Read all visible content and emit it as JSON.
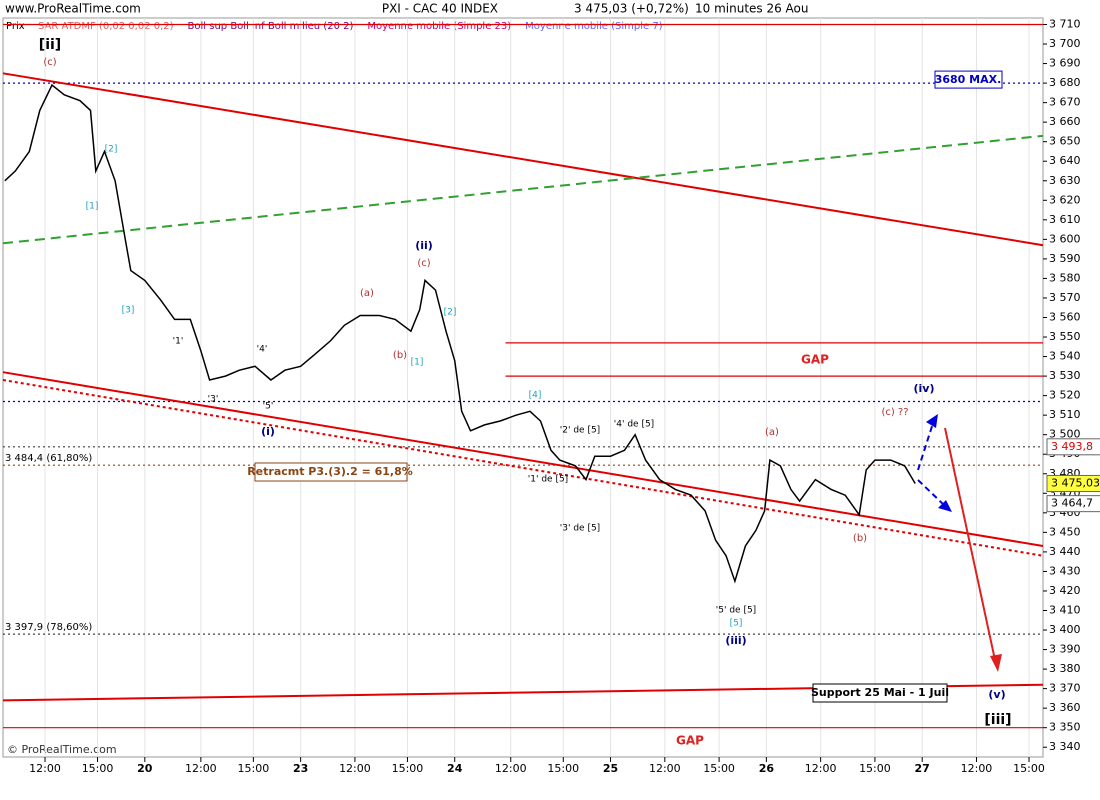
{
  "header": {
    "site": "www.ProRealTime.com",
    "title": "PXI - CAC 40 INDEX",
    "price": "3 475,03 (+0,72%)",
    "period": "10 minutes  26 Aou"
  },
  "legend": {
    "label": "Prix",
    "items": [
      {
        "text": "SAR ATDMF (0,02 0,02 0,2)",
        "color": "#e06060"
      },
      {
        "text": "Boll sup Boll inf Boll milieu (20 2)",
        "color": "#800080"
      },
      {
        "text": "Moyenne mobile (Simple 23)",
        "color": "#c00080"
      },
      {
        "text": "Moyenne mobile (Simple 7)",
        "color": "#6060ff"
      }
    ]
  },
  "footer": "© ProRealTime.com",
  "chart_data": {
    "type": "line",
    "series": [
      {
        "name": "PXI - CAC 40 INDEX",
        "color": "#000000",
        "x": [
          0.1,
          0.7,
          1.5,
          2.1,
          2.8,
          3.5,
          4.4,
          5.0,
          5.3,
          5.8,
          6.4,
          7.0,
          7.3,
          8.1,
          9.0,
          9.8,
          10.7,
          11.3,
          11.8,
          12.7,
          13.5,
          14.4,
          15.3,
          16.1,
          17.0,
          17.8,
          18.7,
          19.5,
          20.4,
          21.5,
          22.4,
          23.3,
          23.8,
          24.1,
          24.7,
          25.3,
          25.8,
          26.2,
          26.7,
          27.5,
          28.4,
          29.3,
          30.1,
          30.7,
          31.3,
          31.8,
          32.7,
          33.3,
          33.8,
          34.7,
          35.5,
          36.1,
          36.7,
          37.5,
          38.4,
          39.3,
          40.1,
          40.7,
          41.3,
          41.8,
          42.4,
          43.0,
          43.5,
          43.8,
          44.4,
          45.0,
          45.5,
          46.4,
          47.3,
          48.1,
          48.9,
          49.3,
          49.8,
          50.7,
          51.5,
          52.1
        ],
        "values": [
          3630,
          3635,
          3645,
          3666,
          3679,
          3674,
          3671,
          3666,
          3635,
          3645,
          3630,
          3599,
          3584,
          3579,
          3569,
          3559,
          3559,
          3543,
          3528,
          3530,
          3533,
          3535,
          3528,
          3533,
          3535,
          3541,
          3548,
          3556,
          3561,
          3561,
          3559,
          3553,
          3564,
          3579,
          3574,
          3553,
          3538,
          3512,
          3502,
          3505,
          3507,
          3510,
          3512,
          3507,
          3492,
          3487,
          3484,
          3477,
          3489,
          3489,
          3492,
          3500,
          3487,
          3477,
          3472,
          3469,
          3461,
          3446,
          3438,
          3425,
          3443,
          3451,
          3461,
          3487,
          3484,
          3472,
          3466,
          3477,
          3472,
          3469,
          3459,
          3482,
          3487,
          3487,
          3484,
          3475.03
        ]
      }
    ],
    "trendlines": [
      {
        "color": "#e00000",
        "dash": "",
        "x": [
          0,
          59.4
        ],
        "y": [
          3685,
          3597
        ]
      },
      {
        "color": "#e00000",
        "dash": "",
        "x": [
          0,
          59.4
        ],
        "y": [
          3532,
          3443
        ]
      },
      {
        "color": "#e00000",
        "dash": "3 3",
        "x": [
          0,
          59.4
        ],
        "y": [
          3528,
          3438
        ]
      },
      {
        "color": "#30a030",
        "dash": "10 6",
        "x": [
          0,
          59.4
        ],
        "y": [
          3598,
          3653
        ]
      },
      {
        "color": "#e00000",
        "dash": "",
        "x": [
          0,
          59.4
        ],
        "y": [
          3364,
          3372
        ]
      }
    ],
    "levels": [
      {
        "value": 3710,
        "color": "#e00000",
        "dash": ""
      },
      {
        "value": 3680,
        "color": "#0000c0",
        "dash": "2 3",
        "label": "3680 MAX."
      },
      {
        "value": 3547,
        "color": "#e00000",
        "dash": "",
        "x0": 28.7
      },
      {
        "value": 3530,
        "color": "#e00000",
        "dash": "",
        "x0": 28.7
      },
      {
        "value": 3517,
        "color": "#0000c0",
        "dash": "2 3"
      },
      {
        "value": 3493.8,
        "color": "#404040",
        "dash": "2 3"
      },
      {
        "value": 3484.4,
        "color": "#8b4513",
        "dash": "2 3",
        "label": "3 484,4 (61,80%)"
      },
      {
        "value": 3397.9,
        "color": "#404040",
        "dash": "2 3",
        "label": "3 397,9 (78,60%)"
      },
      {
        "value": 3350,
        "color": "#e00000",
        "dash": ""
      }
    ],
    "price_labels": [
      {
        "value": 3493.8,
        "label": "3 493,8",
        "fill": "#ffffff",
        "color": "#e00000"
      },
      {
        "value": 3475.03,
        "label": "3 475,03",
        "fill": "#ffff40",
        "color": "#000000"
      },
      {
        "value": 3464.7,
        "label": "3 464,7",
        "fill": "#ffffff",
        "color": "#000000"
      }
    ],
    "annotations": [
      "[ii]",
      "(c)",
      "(ii)",
      "(c)",
      "(a)",
      "(b)",
      "(i)",
      "'5'",
      "'3'",
      "'1'",
      "'4'",
      "(iii)",
      "'5' de [5]",
      "'3' de [5]",
      "'1' de [5]",
      "'2' de [5]",
      "'4' de [5]",
      "(a)",
      "(b)",
      "(c) ??",
      "(iv)",
      "(v)",
      "[iii]",
      "[1]",
      "[2]",
      "[3]",
      "[4]",
      "[5]",
      "[1]",
      "[2]",
      "GAP",
      "GAP",
      "Retracmt P3.(3).2 = 61,8%",
      "Support 25 Mai - 1 Juil"
    ],
    "xlim": [
      0,
      59.4
    ],
    "xticks": [
      {
        "value": 2.4,
        "label": "12:00"
      },
      {
        "value": 5.4,
        "label": "15:00"
      },
      {
        "value": 8.1,
        "label": "20"
      },
      {
        "value": 11.3,
        "label": "12:00"
      },
      {
        "value": 14.3,
        "label": "15:00"
      },
      {
        "value": 17.0,
        "label": "23"
      },
      {
        "value": 20.1,
        "label": "12:00"
      },
      {
        "value": 23.1,
        "label": "15:00"
      },
      {
        "value": 25.8,
        "label": "24"
      },
      {
        "value": 29.0,
        "label": "12:00"
      },
      {
        "value": 32.0,
        "label": "15:00"
      },
      {
        "value": 34.7,
        "label": "25"
      },
      {
        "value": 37.8,
        "label": "12:00"
      },
      {
        "value": 40.9,
        "label": "15:00"
      },
      {
        "value": 43.6,
        "label": "26"
      },
      {
        "value": 46.7,
        "label": "12:00"
      },
      {
        "value": 49.8,
        "label": "15:00"
      },
      {
        "value": 52.5,
        "label": "27"
      },
      {
        "value": 55.6,
        "label": "12:00"
      },
      {
        "value": 58.6,
        "label": "15:00"
      }
    ],
    "ylim": [
      3335,
      3721
    ],
    "yticks": [
      {
        "value": 3340,
        "label": "3 340"
      },
      {
        "value": 3350,
        "label": "3 350"
      },
      {
        "value": 3360,
        "label": "3 360"
      },
      {
        "value": 3370,
        "label": "3 370"
      },
      {
        "value": 3380,
        "label": "3 380"
      },
      {
        "value": 3390,
        "label": "3 390"
      },
      {
        "value": 3400,
        "label": "3 400"
      },
      {
        "value": 3410,
        "label": "3 410"
      },
      {
        "value": 3420,
        "label": "3 420"
      },
      {
        "value": 3430,
        "label": "3 430"
      },
      {
        "value": 3440,
        "label": "3 440"
      },
      {
        "value": 3450,
        "label": "3 450"
      },
      {
        "value": 3460,
        "label": "3 460"
      },
      {
        "value": 3470,
        "label": "3 470"
      },
      {
        "value": 3480,
        "label": "3 480"
      },
      {
        "value": 3490,
        "label": "3 490"
      },
      {
        "value": 3500,
        "label": "3 500"
      },
      {
        "value": 3510,
        "label": "3 510"
      },
      {
        "value": 3520,
        "label": "3 520"
      },
      {
        "value": 3530,
        "label": "3 530"
      },
      {
        "value": 3540,
        "label": "3 540"
      },
      {
        "value": 3550,
        "label": "3 550"
      },
      {
        "value": 3560,
        "label": "3 560"
      },
      {
        "value": 3570,
        "label": "3 570"
      },
      {
        "value": 3580,
        "label": "3 580"
      },
      {
        "value": 3590,
        "label": "3 590"
      },
      {
        "value": 3600,
        "label": "3 600"
      },
      {
        "value": 3610,
        "label": "3 610"
      },
      {
        "value": 3620,
        "label": "3 620"
      },
      {
        "value": 3630,
        "label": "3 630"
      },
      {
        "value": 3640,
        "label": "3 640"
      },
      {
        "value": 3650,
        "label": "3 650"
      },
      {
        "value": 3660,
        "label": "3 660"
      },
      {
        "value": 3670,
        "label": "3 670"
      },
      {
        "value": 3680,
        "label": "3 680"
      },
      {
        "value": 3690,
        "label": "3 690"
      },
      {
        "value": 3700,
        "label": "3 700"
      },
      {
        "value": 3710,
        "label": "3 710"
      }
    ]
  }
}
